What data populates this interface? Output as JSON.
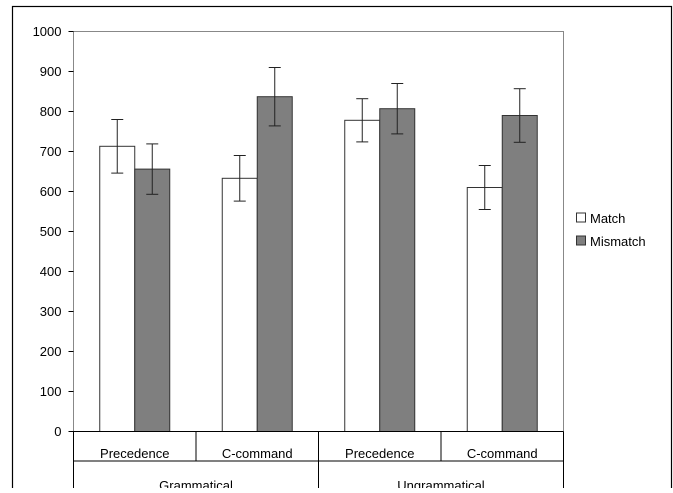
{
  "chart_data": {
    "type": "bar",
    "title": "",
    "xlabel": "",
    "ylabel": "",
    "ylim": [
      0,
      1000
    ],
    "yticks": [
      0,
      100,
      200,
      300,
      400,
      500,
      600,
      700,
      800,
      900,
      1000
    ],
    "grid": false,
    "error_bars": true,
    "legend_position": "right",
    "categories": [
      "Precedence",
      "C-command",
      "Precedence",
      "C-command"
    ],
    "groups": [
      {
        "label": "Grammatical",
        "categories": [
          "Precedence",
          "C-command"
        ]
      },
      {
        "label": "Ungrammatical",
        "categories": [
          "Precedence",
          "C-command"
        ]
      }
    ],
    "series": [
      {
        "name": "Match",
        "color": "#ffffff",
        "values": [
          713,
          633,
          778,
          610
        ],
        "errors": [
          67,
          57,
          54,
          55
        ]
      },
      {
        "name": "Mismatch",
        "color": "#7f7f7f",
        "values": [
          656,
          837,
          807,
          790
        ],
        "errors": [
          63,
          73,
          63,
          67
        ]
      }
    ]
  }
}
